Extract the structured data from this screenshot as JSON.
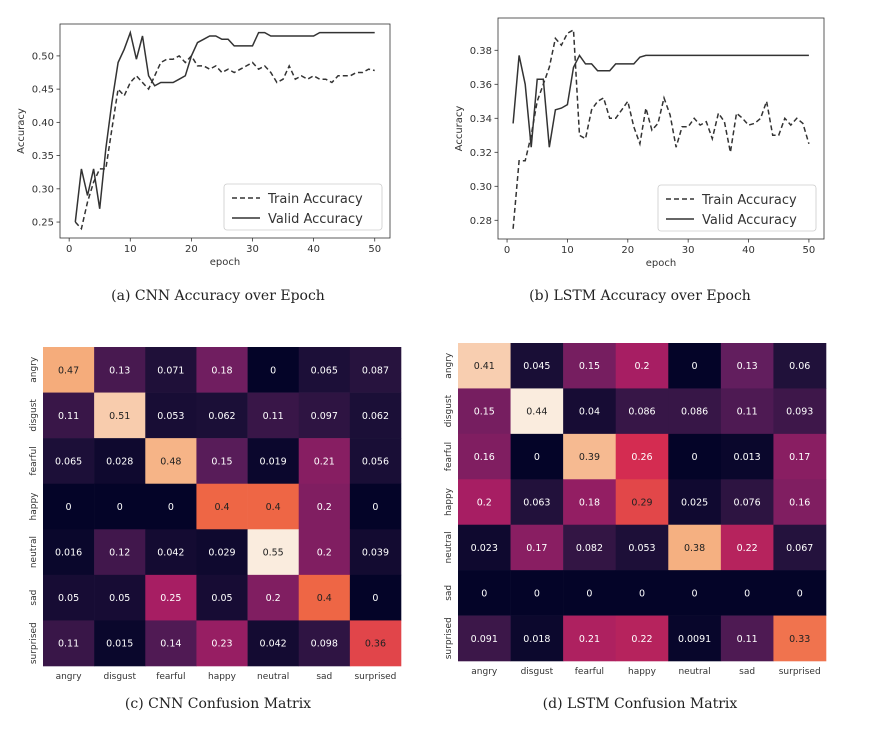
{
  "captions": {
    "a": "(a) CNN Accuracy over Epoch",
    "b": "(b) LSTM Accuracy over Epoch",
    "c": "(c) CNN Confusion Matrix",
    "d": "(d) LSTM Confusion Matrix"
  },
  "chart_data": [
    {
      "id": "cnn-accuracy",
      "type": "line",
      "xlabel": "epoch",
      "ylabel": "Accuracy",
      "xlim": [
        -1.5,
        52.5
      ],
      "ylim": [
        0.226,
        0.548
      ],
      "xticks": [
        0,
        10,
        20,
        30,
        40,
        50
      ],
      "yticks": [
        0.25,
        0.3,
        0.35,
        0.4,
        0.45,
        0.5
      ],
      "ytick_labels": [
        "0.25",
        "0.30",
        "0.35",
        "0.40",
        "0.45",
        "0.50"
      ],
      "legend_position": "bottom-right",
      "x": [
        1,
        2,
        3,
        4,
        5,
        6,
        7,
        8,
        9,
        10,
        11,
        12,
        13,
        14,
        15,
        16,
        17,
        18,
        19,
        20,
        21,
        22,
        23,
        24,
        25,
        26,
        27,
        28,
        29,
        30,
        31,
        32,
        33,
        34,
        35,
        36,
        37,
        38,
        39,
        40,
        41,
        42,
        43,
        44,
        45,
        46,
        47,
        48,
        49,
        50
      ],
      "series": [
        {
          "name": "Train Accuracy",
          "style": "dashed",
          "values": [
            0.25,
            0.24,
            0.28,
            0.31,
            0.33,
            0.33,
            0.39,
            0.45,
            0.44,
            0.46,
            0.47,
            0.46,
            0.45,
            0.47,
            0.49,
            0.495,
            0.495,
            0.5,
            0.49,
            0.5,
            0.485,
            0.485,
            0.48,
            0.485,
            0.475,
            0.48,
            0.475,
            0.48,
            0.485,
            0.49,
            0.48,
            0.485,
            0.475,
            0.46,
            0.465,
            0.485,
            0.465,
            0.47,
            0.465,
            0.47,
            0.465,
            0.465,
            0.46,
            0.47,
            0.47,
            0.47,
            0.475,
            0.475,
            0.48,
            0.478
          ]
        },
        {
          "name": "Valid Accuracy",
          "style": "solid",
          "values": [
            0.25,
            0.33,
            0.29,
            0.33,
            0.27,
            0.36,
            0.43,
            0.49,
            0.51,
            0.535,
            0.495,
            0.53,
            0.47,
            0.455,
            0.46,
            0.46,
            0.46,
            0.465,
            0.47,
            0.5,
            0.52,
            0.525,
            0.53,
            0.53,
            0.525,
            0.525,
            0.515,
            0.515,
            0.515,
            0.515,
            0.535,
            0.535,
            0.53,
            0.53,
            0.53,
            0.53,
            0.53,
            0.53,
            0.53,
            0.53,
            0.535,
            0.535,
            0.535,
            0.535,
            0.535,
            0.535,
            0.535,
            0.535,
            0.535,
            0.535
          ]
        }
      ]
    },
    {
      "id": "lstm-accuracy",
      "type": "line",
      "xlabel": "epoch",
      "ylabel": "Accuracy",
      "xlim": [
        -1.5,
        52.5
      ],
      "ylim": [
        0.269,
        0.399
      ],
      "xticks": [
        0,
        10,
        20,
        30,
        40,
        50
      ],
      "yticks": [
        0.28,
        0.3,
        0.32,
        0.34,
        0.36,
        0.38
      ],
      "ytick_labels": [
        "0.28",
        "0.30",
        "0.32",
        "0.34",
        "0.36",
        "0.38"
      ],
      "legend_position": "bottom-right",
      "x": [
        1,
        2,
        3,
        4,
        5,
        6,
        7,
        8,
        9,
        10,
        11,
        12,
        13,
        14,
        15,
        16,
        17,
        18,
        19,
        20,
        21,
        22,
        23,
        24,
        25,
        26,
        27,
        28,
        29,
        30,
        31,
        32,
        33,
        34,
        35,
        36,
        37,
        38,
        39,
        40,
        41,
        42,
        43,
        44,
        45,
        46,
        47,
        48,
        49,
        50
      ],
      "series": [
        {
          "name": "Train Accuracy",
          "style": "dashed",
          "values": [
            0.275,
            0.315,
            0.315,
            0.33,
            0.35,
            0.36,
            0.37,
            0.387,
            0.383,
            0.39,
            0.392,
            0.33,
            0.328,
            0.345,
            0.35,
            0.352,
            0.34,
            0.34,
            0.345,
            0.35,
            0.335,
            0.325,
            0.346,
            0.333,
            0.337,
            0.352,
            0.342,
            0.323,
            0.335,
            0.335,
            0.34,
            0.336,
            0.338,
            0.328,
            0.343,
            0.338,
            0.32,
            0.343,
            0.34,
            0.336,
            0.337,
            0.34,
            0.35,
            0.33,
            0.33,
            0.34,
            0.336,
            0.34,
            0.337,
            0.325
          ]
        },
        {
          "name": "Valid Accuracy",
          "style": "solid",
          "values": [
            0.337,
            0.377,
            0.36,
            0.323,
            0.363,
            0.363,
            0.323,
            0.345,
            0.346,
            0.348,
            0.37,
            0.377,
            0.372,
            0.372,
            0.368,
            0.368,
            0.368,
            0.372,
            0.372,
            0.372,
            0.372,
            0.376,
            0.377,
            0.377,
            0.377,
            0.377,
            0.377,
            0.377,
            0.377,
            0.377,
            0.377,
            0.377,
            0.377,
            0.377,
            0.377,
            0.377,
            0.377,
            0.377,
            0.377,
            0.377,
            0.377,
            0.377,
            0.377,
            0.377,
            0.377,
            0.377,
            0.377,
            0.377,
            0.377,
            0.377
          ]
        }
      ]
    },
    {
      "id": "cnn-confusion",
      "type": "heatmap",
      "row_labels": [
        "angry",
        "disgust",
        "fearful",
        "happy",
        "neutral",
        "sad",
        "surprised"
      ],
      "col_labels": [
        "angry",
        "disgust",
        "fearful",
        "happy",
        "neutral",
        "sad",
        "surprised"
      ],
      "values": [
        [
          0.47,
          0.13,
          0.071,
          0.18,
          0,
          0.065,
          0.087
        ],
        [
          0.11,
          0.51,
          0.053,
          0.062,
          0.11,
          0.097,
          0.062
        ],
        [
          0.065,
          0.028,
          0.48,
          0.15,
          0.019,
          0.21,
          0.056
        ],
        [
          0,
          0,
          0,
          0.4,
          0.4,
          0.2,
          0
        ],
        [
          0.016,
          0.12,
          0.042,
          0.029,
          0.55,
          0.2,
          0.039
        ],
        [
          0.05,
          0.05,
          0.25,
          0.05,
          0.2,
          0.4,
          0
        ],
        [
          0.11,
          0.015,
          0.14,
          0.23,
          0.042,
          0.098,
          0.36
        ]
      ],
      "labels": [
        [
          "0.47",
          "0.13",
          "0.071",
          "0.18",
          "0",
          "0.065",
          "0.087"
        ],
        [
          "0.11",
          "0.51",
          "0.053",
          "0.062",
          "0.11",
          "0.097",
          "0.062"
        ],
        [
          "0.065",
          "0.028",
          "0.48",
          "0.15",
          "0.019",
          "0.21",
          "0.056"
        ],
        [
          "0",
          "0",
          "0",
          "0.4",
          "0.4",
          "0.2",
          "0"
        ],
        [
          "0.016",
          "0.12",
          "0.042",
          "0.029",
          "0.55",
          "0.2",
          "0.039"
        ],
        [
          "0.05",
          "0.05",
          "0.25",
          "0.05",
          "0.2",
          "0.4",
          "0"
        ],
        [
          "0.11",
          "0.015",
          "0.14",
          "0.23",
          "0.042",
          "0.098",
          "0.36"
        ]
      ],
      "vmax": 0.55
    },
    {
      "id": "lstm-confusion",
      "type": "heatmap",
      "row_labels": [
        "angry",
        "disgust",
        "fearful",
        "happy",
        "neutral",
        "sad",
        "surprised"
      ],
      "col_labels": [
        "angry",
        "disgust",
        "fearful",
        "happy",
        "neutral",
        "sad",
        "surprised"
      ],
      "values": [
        [
          0.41,
          0.045,
          0.15,
          0.2,
          0,
          0.13,
          0.06
        ],
        [
          0.15,
          0.44,
          0.04,
          0.086,
          0.086,
          0.11,
          0.093
        ],
        [
          0.16,
          0,
          0.39,
          0.26,
          0,
          0.013,
          0.17
        ],
        [
          0.2,
          0.063,
          0.18,
          0.29,
          0.025,
          0.076,
          0.16
        ],
        [
          0.023,
          0.17,
          0.082,
          0.053,
          0.38,
          0.22,
          0.067
        ],
        [
          0,
          0,
          0,
          0,
          0,
          0,
          0
        ],
        [
          0.091,
          0.018,
          0.21,
          0.22,
          0.0091,
          0.11,
          0.33
        ]
      ],
      "labels": [
        [
          "0.41",
          "0.045",
          "0.15",
          "0.2",
          "0",
          "0.13",
          "0.06"
        ],
        [
          "0.15",
          "0.44",
          "0.04",
          "0.086",
          "0.086",
          "0.11",
          "0.093"
        ],
        [
          "0.16",
          "0",
          "0.39",
          "0.26",
          "0",
          "0.013",
          "0.17"
        ],
        [
          "0.2",
          "0.063",
          "0.18",
          "0.29",
          "0.025",
          "0.076",
          "0.16"
        ],
        [
          "0.023",
          "0.17",
          "0.082",
          "0.053",
          "0.38",
          "0.22",
          "0.067"
        ],
        [
          "0",
          "0",
          "0",
          "0",
          "0",
          "0",
          "0"
        ],
        [
          "0.091",
          "0.018",
          "0.21",
          "0.22",
          "0.0091",
          "0.11",
          "0.33"
        ]
      ],
      "vmax": 0.44
    }
  ]
}
